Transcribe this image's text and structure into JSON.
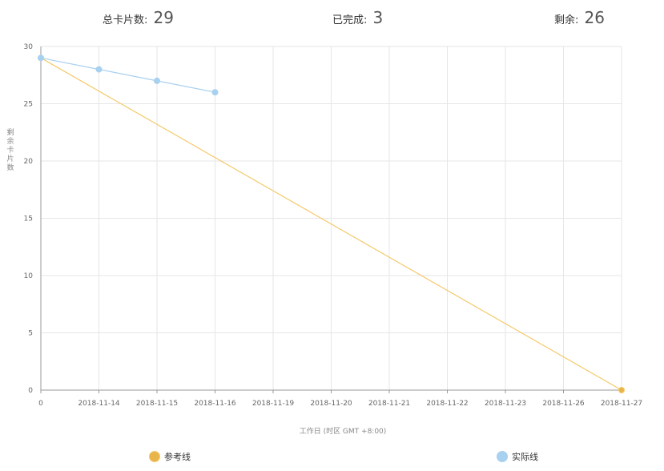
{
  "stats": {
    "total_label": "总卡片数:",
    "total_value": "29",
    "done_label": "已完成:",
    "done_value": "3",
    "remain_label": "剩余:",
    "remain_value": "26"
  },
  "chart_data": {
    "type": "line",
    "categories": [
      "0",
      "2018-11-14",
      "2018-11-15",
      "2018-11-16",
      "2018-11-19",
      "2018-11-20",
      "2018-11-21",
      "2018-11-22",
      "2018-11-23",
      "2018-11-26",
      "2018-11-27"
    ],
    "xlabel": "工作日 (时区 GMT +8:00)",
    "ylabel": "剩余卡片数",
    "ylim": [
      0,
      30
    ],
    "yticks": [
      0,
      5,
      10,
      15,
      20,
      25,
      30
    ],
    "grid": true,
    "legend_position": "bottom",
    "series": [
      {
        "name": "参考线",
        "color": "#f5c96b",
        "marker_color": "#e8b54a",
        "values": [
          29,
          null,
          null,
          null,
          null,
          null,
          null,
          null,
          null,
          null,
          0
        ],
        "markers": [
          10
        ]
      },
      {
        "name": "实际线",
        "color": "#a8d0ef",
        "marker_color": "#a8d0ef",
        "values": [
          29,
          28,
          27,
          26,
          null,
          null,
          null,
          null,
          null,
          null,
          null
        ],
        "markers": [
          0,
          1,
          2,
          3
        ]
      }
    ]
  }
}
